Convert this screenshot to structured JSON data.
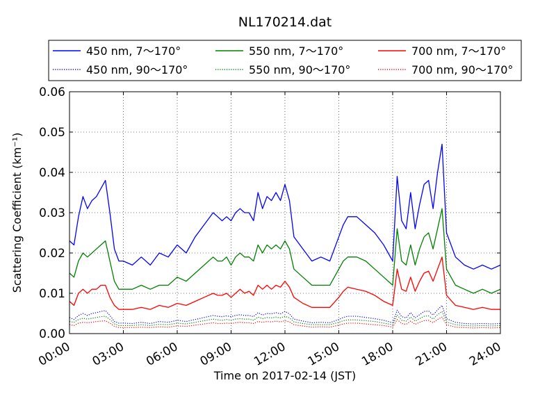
{
  "chart_data": {
    "type": "line",
    "title": "NL170214.dat",
    "xlabel": "Time on 2017-02-14 (JST)",
    "ylabel": "Scattering Coefficient (km⁻¹)",
    "x_unit": "hours",
    "xlim": [
      0,
      24
    ],
    "ylim": [
      0,
      0.06
    ],
    "x_ticks": [
      0,
      3,
      6,
      9,
      12,
      15,
      18,
      21,
      24
    ],
    "x_tick_labels": [
      "00:00",
      "03:00",
      "06:00",
      "09:00",
      "12:00",
      "15:00",
      "18:00",
      "21:00",
      "24:00"
    ],
    "y_ticks": [
      0,
      0.01,
      0.02,
      0.03,
      0.04,
      0.05,
      0.06
    ],
    "y_tick_labels": [
      "0.00",
      "0.01",
      "0.02",
      "0.03",
      "0.04",
      "0.05",
      "0.06"
    ],
    "grid": true,
    "legend_position": "top, above plot",
    "x": [
      0,
      0.25,
      0.5,
      0.75,
      1,
      1.25,
      1.5,
      1.75,
      2,
      2.25,
      2.5,
      2.75,
      3,
      3.5,
      4,
      4.5,
      5,
      5.5,
      6,
      6.5,
      7,
      7.5,
      8,
      8.25,
      8.5,
      8.75,
      9,
      9.25,
      9.5,
      9.75,
      10,
      10.25,
      10.5,
      10.75,
      11,
      11.25,
      11.5,
      11.75,
      12,
      12.25,
      12.5,
      13,
      13.5,
      14,
      14.5,
      15,
      15.25,
      15.5,
      16,
      16.5,
      17,
      17.5,
      17.75,
      18,
      18.25,
      18.5,
      18.75,
      19,
      19.25,
      19.5,
      19.75,
      20,
      20.25,
      20.5,
      20.75,
      21,
      21.5,
      22,
      22.5,
      23,
      23.5,
      24
    ],
    "series": [
      {
        "name": "450 nm, 7～170°",
        "color": "#0000ff",
        "style": "solid",
        "values": [
          0.023,
          0.022,
          0.029,
          0.034,
          0.031,
          0.033,
          0.034,
          0.036,
          0.038,
          0.03,
          0.021,
          0.018,
          0.018,
          0.017,
          0.019,
          0.017,
          0.02,
          0.019,
          0.022,
          0.02,
          0.024,
          0.027,
          0.03,
          0.029,
          0.028,
          0.029,
          0.028,
          0.03,
          0.031,
          0.03,
          0.03,
          0.028,
          0.035,
          0.031,
          0.034,
          0.033,
          0.035,
          0.033,
          0.037,
          0.033,
          0.024,
          0.021,
          0.018,
          0.019,
          0.018,
          0.024,
          0.027,
          0.029,
          0.029,
          0.027,
          0.025,
          0.022,
          0.02,
          0.018,
          0.039,
          0.028,
          0.026,
          0.035,
          0.026,
          0.032,
          0.037,
          0.038,
          0.031,
          0.04,
          0.047,
          0.025,
          0.019,
          0.017,
          0.016,
          0.017,
          0.016,
          0.017
        ]
      },
      {
        "name": "550 nm, 7～170°",
        "color": "#008000",
        "style": "solid",
        "values": [
          0.015,
          0.014,
          0.018,
          0.02,
          0.019,
          0.02,
          0.021,
          0.022,
          0.023,
          0.018,
          0.013,
          0.011,
          0.011,
          0.011,
          0.012,
          0.011,
          0.012,
          0.012,
          0.014,
          0.013,
          0.015,
          0.017,
          0.019,
          0.018,
          0.018,
          0.019,
          0.017,
          0.019,
          0.02,
          0.019,
          0.019,
          0.018,
          0.022,
          0.02,
          0.022,
          0.021,
          0.022,
          0.021,
          0.023,
          0.021,
          0.016,
          0.014,
          0.012,
          0.012,
          0.012,
          0.016,
          0.018,
          0.019,
          0.019,
          0.018,
          0.016,
          0.014,
          0.013,
          0.012,
          0.026,
          0.018,
          0.017,
          0.022,
          0.017,
          0.021,
          0.024,
          0.025,
          0.021,
          0.026,
          0.031,
          0.016,
          0.012,
          0.011,
          0.01,
          0.011,
          0.01,
          0.011
        ]
      },
      {
        "name": "700 nm, 7～170°",
        "color": "#ff0000",
        "style": "solid",
        "values": [
          0.008,
          0.007,
          0.01,
          0.011,
          0.01,
          0.011,
          0.011,
          0.012,
          0.012,
          0.009,
          0.007,
          0.006,
          0.006,
          0.006,
          0.0065,
          0.006,
          0.007,
          0.0065,
          0.0075,
          0.007,
          0.008,
          0.009,
          0.01,
          0.0095,
          0.0095,
          0.01,
          0.009,
          0.01,
          0.011,
          0.01,
          0.0105,
          0.0095,
          0.012,
          0.011,
          0.012,
          0.011,
          0.012,
          0.0115,
          0.013,
          0.0115,
          0.009,
          0.0075,
          0.0065,
          0.0065,
          0.0065,
          0.009,
          0.0105,
          0.0115,
          0.011,
          0.0105,
          0.0095,
          0.008,
          0.0075,
          0.007,
          0.016,
          0.011,
          0.0105,
          0.014,
          0.0105,
          0.013,
          0.015,
          0.0155,
          0.013,
          0.016,
          0.019,
          0.0095,
          0.007,
          0.0065,
          0.006,
          0.0065,
          0.006,
          0.006
        ]
      },
      {
        "name": "450 nm, 90～170°",
        "color": "#0000ff",
        "style": "dotted",
        "values": [
          0.004,
          0.0035,
          0.0045,
          0.005,
          0.0045,
          0.005,
          0.0052,
          0.0055,
          0.0057,
          0.0045,
          0.003,
          0.0026,
          0.0026,
          0.0025,
          0.0028,
          0.0025,
          0.003,
          0.0028,
          0.0033,
          0.003,
          0.0035,
          0.004,
          0.0045,
          0.0043,
          0.0042,
          0.0044,
          0.0042,
          0.0045,
          0.0047,
          0.0045,
          0.0045,
          0.0042,
          0.0052,
          0.0046,
          0.005,
          0.0049,
          0.0052,
          0.0049,
          0.0055,
          0.0049,
          0.0036,
          0.0031,
          0.0027,
          0.0028,
          0.0027,
          0.0035,
          0.004,
          0.0043,
          0.0043,
          0.004,
          0.0037,
          0.0033,
          0.003,
          0.0027,
          0.0058,
          0.0042,
          0.0039,
          0.0052,
          0.0039,
          0.0047,
          0.0055,
          0.0056,
          0.0046,
          0.0059,
          0.007,
          0.0037,
          0.0028,
          0.0025,
          0.0024,
          0.0025,
          0.0024,
          0.0025
        ]
      },
      {
        "name": "550 nm, 90～170°",
        "color": "#008000",
        "style": "dotted",
        "values": [
          0.003,
          0.0028,
          0.0035,
          0.0038,
          0.0036,
          0.0038,
          0.004,
          0.0042,
          0.0043,
          0.0035,
          0.0024,
          0.002,
          0.002,
          0.002,
          0.0022,
          0.002,
          0.0023,
          0.0022,
          0.0026,
          0.0024,
          0.0028,
          0.0032,
          0.0036,
          0.0034,
          0.0033,
          0.0035,
          0.0033,
          0.0036,
          0.0037,
          0.0036,
          0.0036,
          0.0033,
          0.0041,
          0.0037,
          0.004,
          0.0039,
          0.0041,
          0.0039,
          0.0043,
          0.0039,
          0.0029,
          0.0025,
          0.0022,
          0.0022,
          0.0022,
          0.0028,
          0.0032,
          0.0034,
          0.0034,
          0.0032,
          0.003,
          0.0026,
          0.0024,
          0.0022,
          0.0046,
          0.0033,
          0.0031,
          0.0041,
          0.0031,
          0.0037,
          0.0043,
          0.0044,
          0.0036,
          0.0047,
          0.0055,
          0.0029,
          0.0022,
          0.002,
          0.0019,
          0.002,
          0.0019,
          0.002
        ]
      },
      {
        "name": "700 nm, 90～170°",
        "color": "#ff0000",
        "style": "dotted",
        "values": [
          0.0022,
          0.002,
          0.0026,
          0.0028,
          0.0027,
          0.0028,
          0.003,
          0.0031,
          0.0032,
          0.0026,
          0.0018,
          0.0015,
          0.0015,
          0.0015,
          0.0016,
          0.0015,
          0.0017,
          0.0016,
          0.0019,
          0.0018,
          0.0021,
          0.0024,
          0.0027,
          0.0025,
          0.0025,
          0.0026,
          0.0025,
          0.0027,
          0.0028,
          0.0027,
          0.0027,
          0.0025,
          0.003,
          0.0028,
          0.003,
          0.0029,
          0.0031,
          0.0029,
          0.0032,
          0.0029,
          0.0022,
          0.0019,
          0.0016,
          0.0017,
          0.0016,
          0.0021,
          0.0024,
          0.0026,
          0.0026,
          0.0024,
          0.0022,
          0.002,
          0.0018,
          0.0016,
          0.0035,
          0.0025,
          0.0023,
          0.0031,
          0.0023,
          0.0028,
          0.0032,
          0.0033,
          0.0027,
          0.0035,
          0.0041,
          0.0022,
          0.0016,
          0.0015,
          0.0014,
          0.0015,
          0.0014,
          0.0015
        ]
      }
    ],
    "legend_order": [
      0,
      1,
      2,
      3,
      4,
      5
    ]
  }
}
